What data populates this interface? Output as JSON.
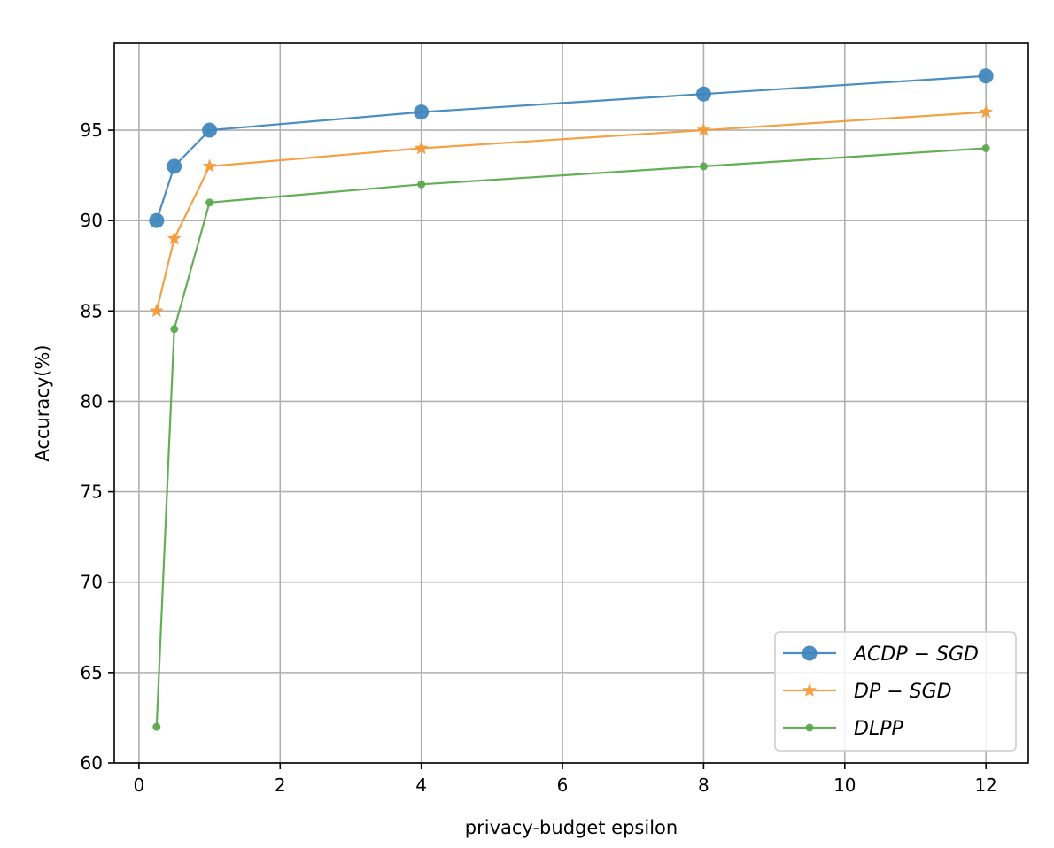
{
  "chart_data": {
    "type": "line",
    "title": "",
    "xlabel": "privacy-budget epsilon",
    "ylabel": "Accuracy(%)",
    "xlim": [
      -0.35,
      12.6
    ],
    "ylim": [
      60,
      99.8
    ],
    "xticks": [
      0,
      2,
      4,
      6,
      8,
      10,
      12
    ],
    "yticks": [
      60,
      65,
      70,
      75,
      80,
      85,
      90,
      95
    ],
    "grid": true,
    "legend_position": "lower-right",
    "x": [
      0.25,
      0.5,
      1,
      4,
      8,
      12
    ],
    "series": [
      {
        "name": "ACDP − SGD",
        "color": "#3d85bc",
        "marker": "circle",
        "values": [
          90,
          93,
          95,
          96,
          97,
          98
        ]
      },
      {
        "name": "DP − SGD",
        "color": "#f39a38",
        "marker": "star",
        "values": [
          85,
          89,
          93,
          94,
          95,
          96
        ]
      },
      {
        "name": "DLPP",
        "color": "#59a84b",
        "marker": "dot",
        "values": [
          62,
          84,
          91,
          92,
          93,
          94
        ]
      }
    ]
  }
}
